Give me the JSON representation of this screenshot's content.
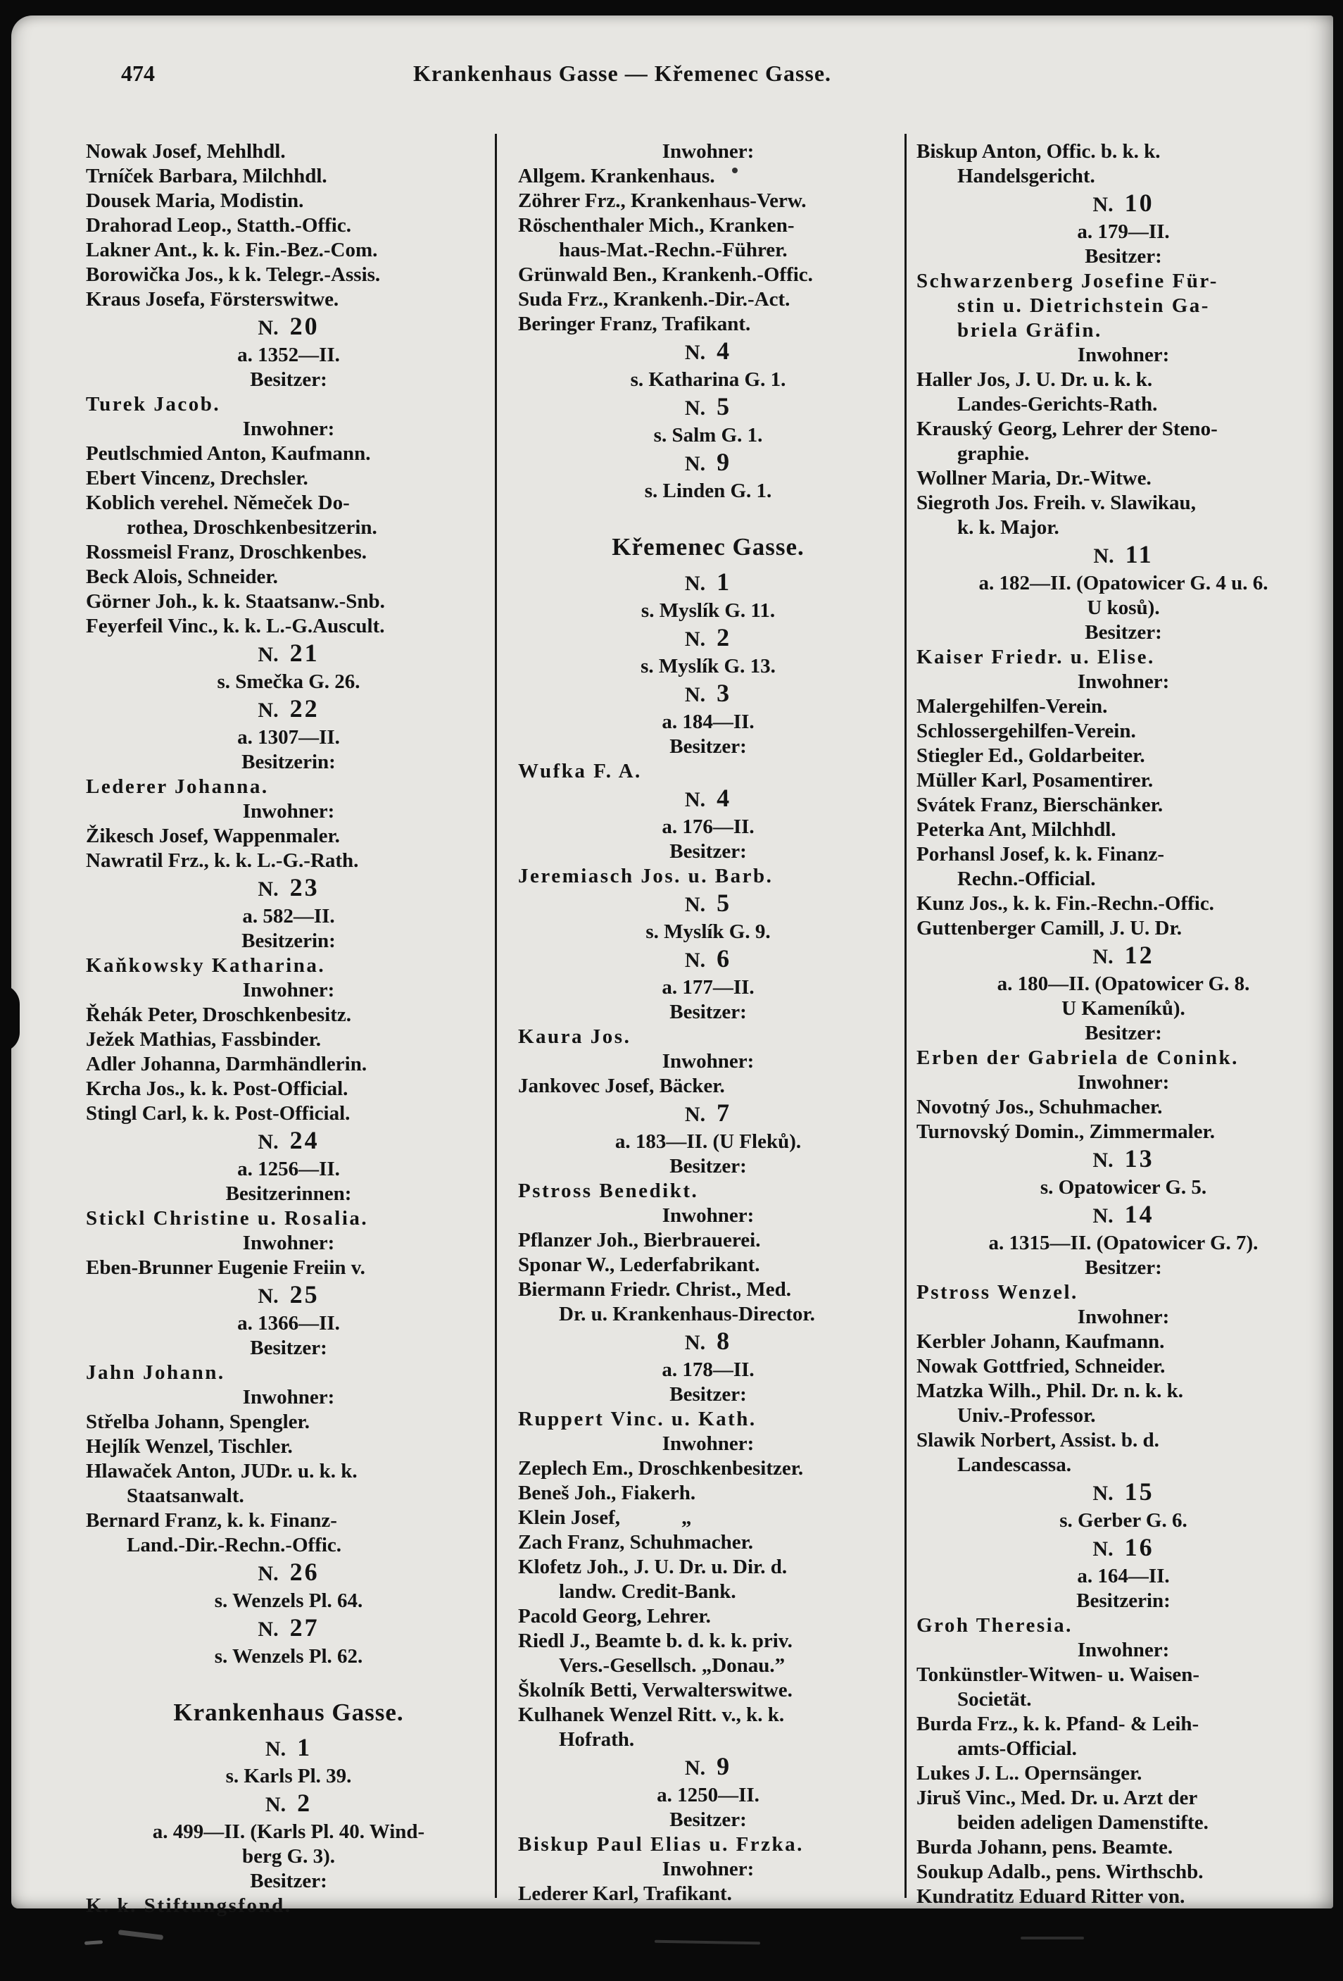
{
  "page": {
    "number": "474",
    "title": "Krankenhaus Gasse — Křemenec Gasse."
  },
  "number_prefix": "N.",
  "line_type_legend": {
    "e": "entry line (resident)",
    "i": "indented continuation line",
    "c": "centered line (address / role label)",
    "o": "owner name line (letterspaced)",
    "oi": "owner name continuation (letterspaced, indented)",
    "n": "house number line",
    "h": "street heading"
  },
  "columns": [
    {
      "lines": [
        [
          "e",
          "Nowak Josef, Mehlhdl."
        ],
        [
          "e",
          "Trníček Barbara, Milchhdl."
        ],
        [
          "e",
          "Dousek Maria, Modistin."
        ],
        [
          "e",
          "Drahorad Leop., Statth.-Offic."
        ],
        [
          "e",
          "Lakner Ant., k. k. Fin.-Bez.-Com."
        ],
        [
          "e",
          "Borowička Jos., k k. Telegr.-Assis."
        ],
        [
          "e",
          "Kraus Josefa, Försterswitwe."
        ],
        [
          "n",
          "20"
        ],
        [
          "c",
          "a. 1352—II."
        ],
        [
          "c",
          "Besitzer:"
        ],
        [
          "o",
          "Turek Jacob."
        ],
        [
          "c",
          "Inwohner:"
        ],
        [
          "e",
          "Peutlschmied Anton, Kaufmann."
        ],
        [
          "e",
          "Ebert Vincenz, Drechsler."
        ],
        [
          "e",
          "Koblich verehel. Němeček Do-"
        ],
        [
          "i",
          "rothea, Droschkenbesitzerin."
        ],
        [
          "e",
          "Rossmeisl Franz, Droschkenbes."
        ],
        [
          "e",
          "Beck Alois, Schneider."
        ],
        [
          "e",
          "Görner Joh., k. k. Staatsanw.-Snb."
        ],
        [
          "e",
          "Feyerfeil Vinc., k. k. L.-G.Auscult."
        ],
        [
          "n",
          "21"
        ],
        [
          "c",
          "s. Smečka G. 26."
        ],
        [
          "n",
          "22"
        ],
        [
          "c",
          "a. 1307—II."
        ],
        [
          "c",
          "Besitzerin:"
        ],
        [
          "o",
          "Lederer Johanna."
        ],
        [
          "c",
          "Inwohner:"
        ],
        [
          "e",
          "Žikesch Josef, Wappenmaler."
        ],
        [
          "e",
          "Nawratil Frz., k. k. L.-G.-Rath."
        ],
        [
          "n",
          "23"
        ],
        [
          "c",
          "a. 582—II."
        ],
        [
          "c",
          "Besitzerin:"
        ],
        [
          "o",
          "Kaňkowsky Katharina."
        ],
        [
          "c",
          "Inwohner:"
        ],
        [
          "e",
          "Řehák Peter, Droschkenbesitz."
        ],
        [
          "e",
          "Ježek Mathias, Fassbinder."
        ],
        [
          "e",
          "Adler Johanna, Darmhändlerin."
        ],
        [
          "e",
          "Krcha Jos., k. k. Post-Official."
        ],
        [
          "e",
          "Stingl Carl, k. k. Post-Official."
        ],
        [
          "n",
          "24"
        ],
        [
          "c",
          "a. 1256—II."
        ],
        [
          "c",
          "Besitzerinnen:"
        ],
        [
          "o",
          "Stickl Christine u. Rosalia."
        ],
        [
          "c",
          "Inwohner:"
        ],
        [
          "e",
          "Eben-Brunner Eugenie Freiin v."
        ],
        [
          "n",
          "25"
        ],
        [
          "c",
          "a. 1366—II."
        ],
        [
          "c",
          "Besitzer:"
        ],
        [
          "o",
          "Jahn Johann."
        ],
        [
          "c",
          "Inwohner:"
        ],
        [
          "e",
          "Střelba Johann, Spengler."
        ],
        [
          "e",
          "Hejlík Wenzel, Tischler."
        ],
        [
          "e",
          "Hlawaček Anton, JUDr. u. k. k."
        ],
        [
          "i",
          "Staatsanwalt."
        ],
        [
          "e",
          "Bernard Franz, k. k. Finanz-"
        ],
        [
          "i",
          "Land.-Dir.-Rechn.-Offic."
        ],
        [
          "n",
          "26"
        ],
        [
          "c",
          "s. Wenzels Pl. 64."
        ],
        [
          "n",
          "27"
        ],
        [
          "c",
          "s. Wenzels Pl. 62."
        ],
        [
          "h",
          "Krankenhaus Gasse."
        ],
        [
          "n",
          "1"
        ],
        [
          "c",
          "s. Karls Pl. 39."
        ],
        [
          "n",
          "2"
        ],
        [
          "c",
          "a. 499—II. (Karls Pl. 40. Wind-"
        ],
        [
          "c",
          "berg G. 3)."
        ],
        [
          "c",
          "Besitzer:"
        ],
        [
          "o",
          "K. k. Stiftungsfond."
        ]
      ]
    },
    {
      "lines": [
        [
          "c",
          "Inwohner:"
        ],
        [
          "e",
          "Allgem. Krankenhaus."
        ],
        [
          "e",
          "Zöhrer Frz., Krankenhaus-Verw."
        ],
        [
          "e",
          "Röschenthaler Mich., Kranken-"
        ],
        [
          "i",
          "haus-Mat.-Rechn.-Führer."
        ],
        [
          "e",
          "Grünwald Ben., Krankenh.-Offic."
        ],
        [
          "e",
          "Suda Frz., Krankenh.-Dir.-Act."
        ],
        [
          "e",
          "Beringer Franz, Trafikant."
        ],
        [
          "n",
          "4"
        ],
        [
          "c",
          "s. Katharina G. 1."
        ],
        [
          "n",
          "5"
        ],
        [
          "c",
          "s. Salm G. 1."
        ],
        [
          "n",
          "9"
        ],
        [
          "c",
          "s. Linden G. 1."
        ],
        [
          "h",
          "Křemenec Gasse."
        ],
        [
          "n",
          "1"
        ],
        [
          "c",
          "s. Myslík G. 11."
        ],
        [
          "n",
          "2"
        ],
        [
          "c",
          "s. Myslík G. 13."
        ],
        [
          "n",
          "3"
        ],
        [
          "c",
          "a. 184—II."
        ],
        [
          "c",
          "Besitzer:"
        ],
        [
          "o",
          "Wufka F. A."
        ],
        [
          "n",
          "4"
        ],
        [
          "c",
          "a. 176—II."
        ],
        [
          "c",
          "Besitzer:"
        ],
        [
          "o",
          "Jeremiasch Jos. u. Barb."
        ],
        [
          "n",
          "5"
        ],
        [
          "c",
          "s. Myslík G. 9."
        ],
        [
          "n",
          "6"
        ],
        [
          "c",
          "a. 177—II."
        ],
        [
          "c",
          "Besitzer:"
        ],
        [
          "o",
          "Kaura Jos."
        ],
        [
          "c",
          "Inwohner:"
        ],
        [
          "e",
          "Jankovec Josef, Bäcker."
        ],
        [
          "n",
          "7"
        ],
        [
          "c",
          "a. 183—II. (U Fleků)."
        ],
        [
          "c",
          "Besitzer:"
        ],
        [
          "o",
          "Pstross Benedikt."
        ],
        [
          "c",
          "Inwohner:"
        ],
        [
          "e",
          "Pflanzer Joh., Bierbrauerei."
        ],
        [
          "e",
          "Sponar W., Lederfabrikant."
        ],
        [
          "e",
          "Biermann Friedr. Christ., Med."
        ],
        [
          "i",
          "Dr. u. Krankenhaus-Director."
        ],
        [
          "n",
          "8"
        ],
        [
          "c",
          "a. 178—II."
        ],
        [
          "c",
          "Besitzer:"
        ],
        [
          "o",
          "Ruppert Vinc. u. Kath."
        ],
        [
          "c",
          "Inwohner:"
        ],
        [
          "e",
          "Zeplech Em., Droschkenbesitzer."
        ],
        [
          "e",
          "Beneš Joh., Fiakerh."
        ],
        [
          "e",
          "Klein Josef,   „"
        ],
        [
          "e",
          "Zach Franz, Schuhmacher."
        ],
        [
          "e",
          "Klofetz Joh., J. U. Dr. u. Dir. d."
        ],
        [
          "i",
          "landw. Credit-Bank."
        ],
        [
          "e",
          "Pacold Georg, Lehrer."
        ],
        [
          "e",
          "Riedl J., Beamte b. d. k. k. priv."
        ],
        [
          "i",
          "Vers.-Gesellsch. „Donau.”"
        ],
        [
          "e",
          "Školník Betti, Verwalterswitwe."
        ],
        [
          "e",
          "Kulhanek Wenzel Ritt. v., k. k."
        ],
        [
          "i",
          "Hofrath."
        ],
        [
          "n",
          "9"
        ],
        [
          "c",
          "a. 1250—II."
        ],
        [
          "c",
          "Besitzer:"
        ],
        [
          "o",
          "Biskup Paul Elias u. Frzka."
        ],
        [
          "c",
          "Inwohner:"
        ],
        [
          "e",
          "Lederer Karl, Trafikant."
        ]
      ]
    },
    {
      "lines": [
        [
          "e",
          "Biskup Anton, Offic. b. k. k."
        ],
        [
          "i",
          "Handelsgericht."
        ],
        [
          "n",
          "10"
        ],
        [
          "c",
          "a. 179—II."
        ],
        [
          "c",
          "Besitzer:"
        ],
        [
          "o",
          "Schwarzenberg Josefine Für-"
        ],
        [
          "oi",
          "stin u. Dietrichstein Ga-"
        ],
        [
          "oi",
          "briela Gräfin."
        ],
        [
          "c",
          "Inwohner:"
        ],
        [
          "e",
          "Haller Jos, J. U. Dr. u. k. k."
        ],
        [
          "i",
          "Landes-Gerichts-Rath."
        ],
        [
          "e",
          "Krauský Georg, Lehrer der Steno-"
        ],
        [
          "i",
          "graphie."
        ],
        [
          "e",
          "Wollner Maria, Dr.-Witwe."
        ],
        [
          "e",
          "Siegroth Jos. Freih. v. Slawikau,"
        ],
        [
          "i",
          "k. k. Major."
        ],
        [
          "n",
          "11"
        ],
        [
          "c",
          "a. 182—II. (Opatowicer G. 4 u. 6."
        ],
        [
          "c",
          "U kosů)."
        ],
        [
          "c",
          "Besitzer:"
        ],
        [
          "o",
          "Kaiser Friedr. u. Elise."
        ],
        [
          "c",
          "Inwohner:"
        ],
        [
          "e",
          "Malergehilfen-Verein."
        ],
        [
          "e",
          "Schlossergehilfen-Verein."
        ],
        [
          "e",
          "Stiegler Ed., Goldarbeiter."
        ],
        [
          "e",
          "Müller Karl, Posamentirer."
        ],
        [
          "e",
          "Svátek Franz, Bierschänker."
        ],
        [
          "e",
          "Peterka Ant, Milchhdl."
        ],
        [
          "e",
          "Porhansl Josef, k. k. Finanz-"
        ],
        [
          "i",
          "Rechn.-Official."
        ],
        [
          "e",
          "Kunz Jos., k. k. Fin.-Rechn.-Offic."
        ],
        [
          "e",
          "Guttenberger Camill, J. U. Dr."
        ],
        [
          "n",
          "12"
        ],
        [
          "c",
          "a. 180—II. (Opatowicer G. 8."
        ],
        [
          "c",
          "U Kameníků)."
        ],
        [
          "c",
          "Besitzer:"
        ],
        [
          "o",
          "Erben der Gabriela de Conink."
        ],
        [
          "c",
          "Inwohner:"
        ],
        [
          "e",
          "Novotný Jos., Schuhmacher."
        ],
        [
          "e",
          "Turnovský Domin., Zimmermaler."
        ],
        [
          "n",
          "13"
        ],
        [
          "c",
          "s. Opatowicer G. 5."
        ],
        [
          "n",
          "14"
        ],
        [
          "c",
          "a. 1315—II. (Opatowicer G. 7)."
        ],
        [
          "c",
          "Besitzer:"
        ],
        [
          "o",
          "Pstross Wenzel."
        ],
        [
          "c",
          "Inwohner:"
        ],
        [
          "e",
          "Kerbler Johann, Kaufmann."
        ],
        [
          "e",
          "Nowak Gottfried, Schneider."
        ],
        [
          "e",
          "Matzka Wilh., Phil. Dr. n. k. k."
        ],
        [
          "i",
          "Univ.-Professor."
        ],
        [
          "e",
          "Slawik Norbert, Assist. b. d."
        ],
        [
          "i",
          "Landescassa."
        ],
        [
          "n",
          "15"
        ],
        [
          "c",
          "s. Gerber G. 6."
        ],
        [
          "n",
          "16"
        ],
        [
          "c",
          "a. 164—II."
        ],
        [
          "c",
          "Besitzerin:"
        ],
        [
          "o",
          "Groh Theresia."
        ],
        [
          "c",
          "Inwohner:"
        ],
        [
          "e",
          "Tonkünstler-Witwen- u. Waisen-"
        ],
        [
          "i",
          "Societät."
        ],
        [
          "e",
          "Burda Frz., k. k. Pfand- & Leih-"
        ],
        [
          "i",
          "amts-Official."
        ],
        [
          "e",
          "Lukes J. L.. Opernsänger."
        ],
        [
          "e",
          "Jiruš Vinc., Med. Dr. u. Arzt der"
        ],
        [
          "i",
          "beiden adeligen Damenstifte."
        ],
        [
          "e",
          "Burda Johann, pens. Beamte."
        ],
        [
          "e",
          "Soukup Adalb., pens. Wirthschb."
        ],
        [
          "e",
          "Kundratitz Eduard Ritter von."
        ]
      ]
    }
  ]
}
